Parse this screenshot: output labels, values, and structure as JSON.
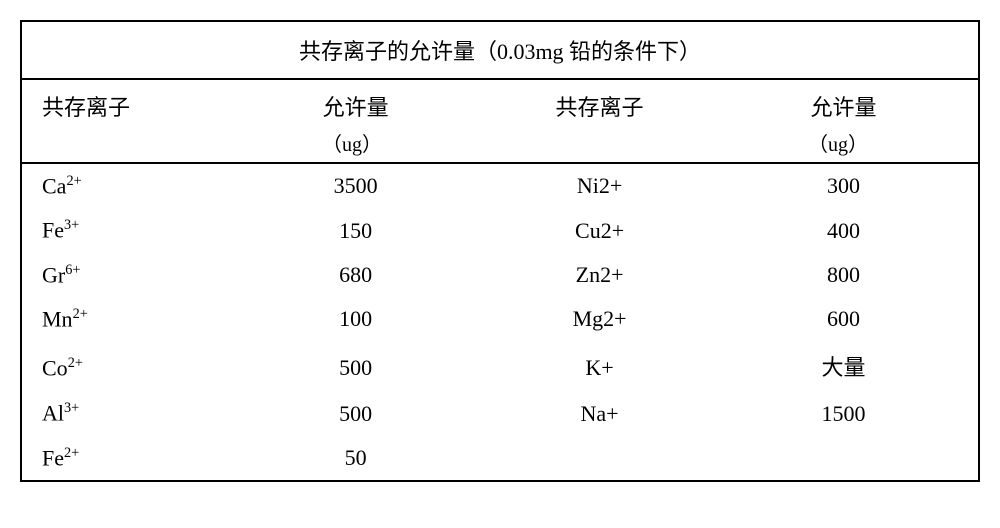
{
  "table": {
    "title": "共存离子的允许量（0.03mg 铅的条件下）",
    "headers": {
      "ion": "共存离子",
      "allow": "允许量",
      "unit": "（ug）"
    },
    "rows": [
      {
        "ion1": "Ca",
        "sup1": "2+",
        "val1": "3500",
        "ion2": "Ni2+",
        "sup2": "",
        "val2": "300"
      },
      {
        "ion1": "Fe",
        "sup1": "3+",
        "val1": "150",
        "ion2": "Cu2+",
        "sup2": "",
        "val2": "400"
      },
      {
        "ion1": "Gr",
        "sup1": "6+",
        "val1": "680",
        "ion2": "Zn2+",
        "sup2": "",
        "val2": "800"
      },
      {
        "ion1": "Mn",
        "sup1": "2+",
        "val1": "100",
        "ion2": "Mg2+",
        "sup2": "",
        "val2": "600"
      },
      {
        "ion1": "Co",
        "sup1": "2+",
        "val1": "500",
        "ion2": "K+",
        "sup2": "",
        "val2": "大量"
      },
      {
        "ion1": "Al",
        "sup1": "3+",
        "val1": "500",
        "ion2": "Na+",
        "sup2": "",
        "val2": "1500"
      },
      {
        "ion1": "Fe",
        "sup1": "2+",
        "val1": "50",
        "ion2": "",
        "sup2": "",
        "val2": ""
      }
    ]
  },
  "style": {
    "border_color": "#000000",
    "background": "#ffffff",
    "font_size_body": 22,
    "font_family_cjk": "SimSun",
    "font_family_ion": "Times New Roman"
  }
}
